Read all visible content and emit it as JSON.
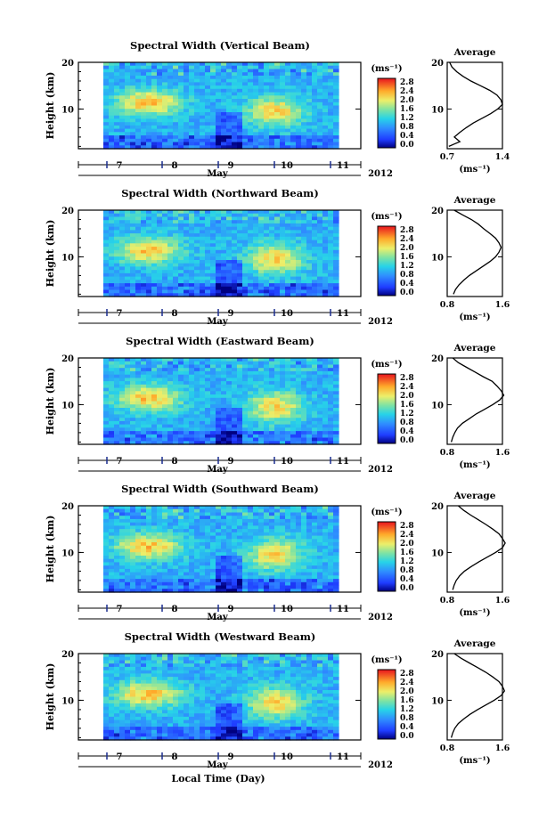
{
  "figure": {
    "xlabel": "Local Time (Day)"
  },
  "chart_data": [
    {
      "type": "heatmap",
      "title": "Spectral Width (Vertical Beam)",
      "ylabel": "Height (km)",
      "xlabel": "May",
      "year_label": "2012",
      "x_ticks": [
        "7",
        "8",
        "9",
        "10",
        "11"
      ],
      "y_ticks": [
        "20",
        "10"
      ],
      "ylim_km": [
        1.5,
        20
      ],
      "colorbar": {
        "unit_label": "(ms⁻¹)",
        "ticks": [
          "2.8",
          "2.4",
          "2.0",
          "1.6",
          "1.2",
          "0.8",
          "0.4",
          "0.0"
        ],
        "range": [
          0,
          2.8
        ]
      },
      "average": {
        "title": "Average",
        "xlabel": "(ms⁻¹)",
        "x_ticks": [
          "0.7",
          "1.4"
        ],
        "xlim": [
          0.7,
          1.4
        ],
        "y_ticks": [
          "20",
          "10"
        ],
        "profile": [
          [
            20,
            0.73
          ],
          [
            19,
            0.76
          ],
          [
            18,
            0.82
          ],
          [
            17,
            0.9
          ],
          [
            16,
            1.0
          ],
          [
            15,
            1.12
          ],
          [
            14,
            1.24
          ],
          [
            13,
            1.33
          ],
          [
            12,
            1.38
          ],
          [
            11,
            1.4
          ],
          [
            10,
            1.34
          ],
          [
            9,
            1.25
          ],
          [
            8,
            1.14
          ],
          [
            7,
            1.03
          ],
          [
            6,
            0.94
          ],
          [
            5,
            0.86
          ],
          [
            4,
            0.79
          ],
          [
            3,
            0.86
          ],
          [
            2,
            0.72
          ]
        ]
      }
    },
    {
      "type": "heatmap",
      "title": "Spectral Width (Northward Beam)",
      "ylabel": "Height (km)",
      "xlabel": "May",
      "year_label": "2012",
      "x_ticks": [
        "7",
        "8",
        "9",
        "10",
        "11"
      ],
      "y_ticks": [
        "20",
        "10"
      ],
      "ylim_km": [
        1.5,
        20
      ],
      "colorbar": {
        "unit_label": "(ms⁻¹)",
        "ticks": [
          "2.8",
          "2.4",
          "2.0",
          "1.6",
          "1.2",
          "0.8",
          "0.4",
          "0.0"
        ],
        "range": [
          0,
          2.8
        ]
      },
      "average": {
        "title": "Average",
        "xlabel": "(ms⁻¹)",
        "x_ticks": [
          "0.8",
          "1.6"
        ],
        "xlim": [
          0.8,
          1.6
        ],
        "y_ticks": [
          "20",
          "10"
        ],
        "profile": [
          [
            20,
            0.9
          ],
          [
            19,
            1.02
          ],
          [
            18,
            1.15
          ],
          [
            17,
            1.25
          ],
          [
            16,
            1.33
          ],
          [
            15,
            1.42
          ],
          [
            14,
            1.5
          ],
          [
            13,
            1.55
          ],
          [
            12,
            1.58
          ],
          [
            11,
            1.55
          ],
          [
            10,
            1.5
          ],
          [
            9,
            1.42
          ],
          [
            8,
            1.32
          ],
          [
            7,
            1.22
          ],
          [
            6,
            1.12
          ],
          [
            5,
            1.04
          ],
          [
            4,
            0.97
          ],
          [
            3,
            0.92
          ],
          [
            2,
            0.89
          ]
        ]
      }
    },
    {
      "type": "heatmap",
      "title": "Spectral Width (Eastward Beam)",
      "ylabel": "Height (km)",
      "xlabel": "May",
      "year_label": "2012",
      "x_ticks": [
        "7",
        "8",
        "9",
        "10",
        "11"
      ],
      "y_ticks": [
        "20",
        "10"
      ],
      "ylim_km": [
        1.5,
        20
      ],
      "colorbar": {
        "unit_label": "(ms⁻¹)",
        "ticks": [
          "2.8",
          "2.4",
          "2.0",
          "1.6",
          "1.2",
          "0.8",
          "0.4",
          "0.0"
        ],
        "range": [
          0,
          2.8
        ]
      },
      "average": {
        "title": "Average",
        "xlabel": "(ms⁻¹)",
        "x_ticks": [
          "0.8",
          "1.6"
        ],
        "xlim": [
          0.8,
          1.6
        ],
        "y_ticks": [
          "20",
          "10"
        ],
        "profile": [
          [
            20,
            0.88
          ],
          [
            19,
            0.96
          ],
          [
            18,
            1.08
          ],
          [
            17,
            1.2
          ],
          [
            16,
            1.32
          ],
          [
            15,
            1.45
          ],
          [
            14,
            1.52
          ],
          [
            13,
            1.58
          ],
          [
            12,
            1.62
          ],
          [
            11,
            1.56
          ],
          [
            10,
            1.46
          ],
          [
            9,
            1.34
          ],
          [
            8,
            1.22
          ],
          [
            7,
            1.12
          ],
          [
            6,
            1.02
          ],
          [
            5,
            0.95
          ],
          [
            4,
            0.91
          ],
          [
            3,
            0.88
          ],
          [
            2,
            0.86
          ]
        ]
      }
    },
    {
      "type": "heatmap",
      "title": "Spectral Width (Southward Beam)",
      "ylabel": "Height (km)",
      "xlabel": "May",
      "year_label": "2012",
      "x_ticks": [
        "7",
        "8",
        "9",
        "10",
        "11"
      ],
      "y_ticks": [
        "20",
        "10"
      ],
      "ylim_km": [
        1.5,
        20
      ],
      "colorbar": {
        "unit_label": "(ms⁻¹)",
        "ticks": [
          "2.8",
          "2.4",
          "2.0",
          "1.6",
          "1.2",
          "0.8",
          "0.4",
          "0.0"
        ],
        "range": [
          0,
          2.8
        ]
      },
      "average": {
        "title": "Average",
        "xlabel": "(ms⁻¹)",
        "x_ticks": [
          "0.8",
          "1.6"
        ],
        "xlim": [
          0.8,
          1.6
        ],
        "y_ticks": [
          "20",
          "10"
        ],
        "profile": [
          [
            20,
            0.96
          ],
          [
            19,
            1.04
          ],
          [
            18,
            1.14
          ],
          [
            17,
            1.25
          ],
          [
            16,
            1.36
          ],
          [
            15,
            1.46
          ],
          [
            14,
            1.55
          ],
          [
            13,
            1.6
          ],
          [
            12,
            1.64
          ],
          [
            11,
            1.6
          ],
          [
            10,
            1.5
          ],
          [
            9,
            1.38
          ],
          [
            8,
            1.26
          ],
          [
            7,
            1.15
          ],
          [
            6,
            1.05
          ],
          [
            5,
            0.98
          ],
          [
            4,
            0.93
          ],
          [
            3,
            0.9
          ],
          [
            2,
            0.88
          ]
        ]
      }
    },
    {
      "type": "heatmap",
      "title": "Spectral Width (Westward Beam)",
      "ylabel": "Height (km)",
      "xlabel": "May",
      "year_label": "2012",
      "x_ticks": [
        "7",
        "8",
        "9",
        "10",
        "11"
      ],
      "y_ticks": [
        "20",
        "10"
      ],
      "ylim_km": [
        1.5,
        20
      ],
      "colorbar": {
        "unit_label": "(ms⁻¹)",
        "ticks": [
          "2.8",
          "2.4",
          "2.0",
          "1.6",
          "1.2",
          "0.8",
          "0.4",
          "0.0"
        ],
        "range": [
          0,
          2.8
        ]
      },
      "average": {
        "title": "Average",
        "xlabel": "(ms⁻¹)",
        "x_ticks": [
          "0.8",
          "1.6"
        ],
        "xlim": [
          0.8,
          1.6
        ],
        "y_ticks": [
          "20",
          "10"
        ],
        "profile": [
          [
            20,
            0.9
          ],
          [
            19,
            1.0
          ],
          [
            18,
            1.12
          ],
          [
            17,
            1.24
          ],
          [
            16,
            1.36
          ],
          [
            15,
            1.46
          ],
          [
            14,
            1.55
          ],
          [
            13,
            1.6
          ],
          [
            12,
            1.63
          ],
          [
            11,
            1.58
          ],
          [
            10,
            1.48
          ],
          [
            9,
            1.36
          ],
          [
            8,
            1.24
          ],
          [
            7,
            1.13
          ],
          [
            6,
            1.04
          ],
          [
            5,
            0.96
          ],
          [
            4,
            0.91
          ],
          [
            3,
            0.88
          ],
          [
            2,
            0.86
          ]
        ]
      }
    }
  ]
}
